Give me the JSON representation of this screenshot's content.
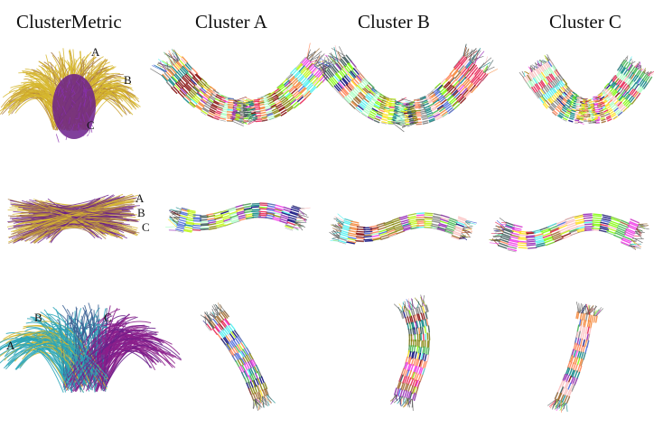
{
  "column_titles": [
    "ClusterMetric",
    "Cluster A",
    "Cluster B",
    "Cluster C"
  ],
  "row1_labels": [
    "A",
    "B",
    "C"
  ],
  "row2_labels": [
    "A",
    "B",
    "C"
  ],
  "row3_labels": [
    "A",
    "B",
    "C"
  ],
  "colors": {
    "yellow": "#d6b72e",
    "purple": "#6a1f8a",
    "brown": "#a87a4a",
    "cyan": "#2aa6b8",
    "blue": "#3a5f93",
    "magenta": "#8b1e8b"
  }
}
